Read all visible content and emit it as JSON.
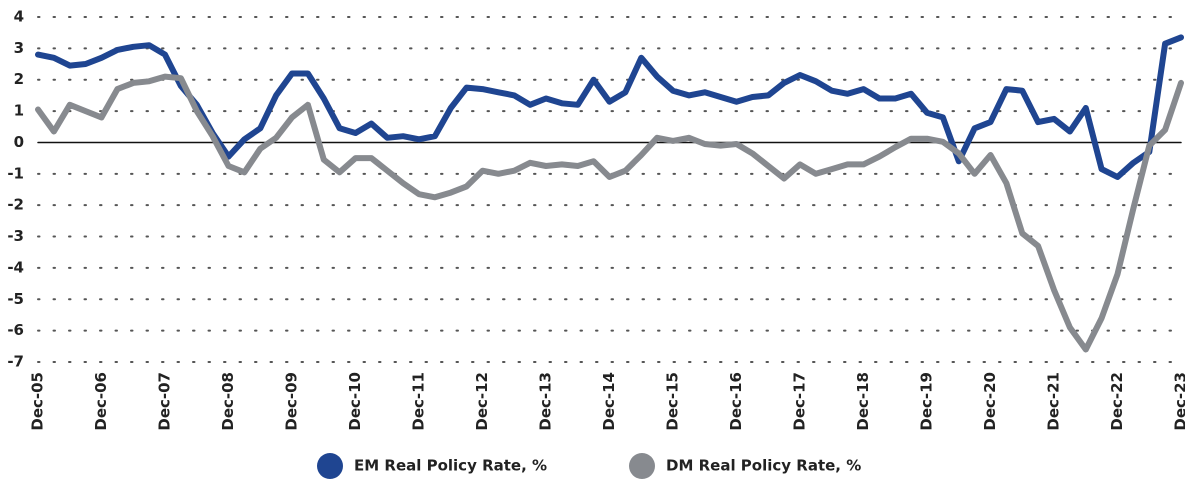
{
  "chart_data": {
    "type": "line",
    "categories": [
      "Dec-05",
      null,
      null,
      null,
      "Dec-06",
      null,
      null,
      null,
      "Dec-07",
      null,
      null,
      null,
      "Dec-08",
      null,
      null,
      null,
      "Dec-09",
      null,
      null,
      null,
      "Dec-10",
      null,
      null,
      null,
      "Dec-11",
      null,
      null,
      null,
      "Dec-12",
      null,
      null,
      null,
      "Dec-13",
      null,
      null,
      null,
      "Dec-14",
      null,
      null,
      null,
      "Dec-15",
      null,
      null,
      null,
      "Dec-16",
      null,
      null,
      null,
      "Dec-17",
      null,
      null,
      null,
      "Dec-18",
      null,
      null,
      null,
      "Dec-19",
      null,
      null,
      null,
      "Dec-20",
      null,
      null,
      null,
      "Dec-21",
      null,
      null,
      null,
      "Dec-22",
      null,
      null,
      null,
      "Dec-23"
    ],
    "series": [
      {
        "name": "EM Real Policy Rate, %",
        "color": "#1f4591",
        "values": [
          2.8,
          2.7,
          2.45,
          2.5,
          2.7,
          2.95,
          3.05,
          3.1,
          2.8,
          1.8,
          1.2,
          0.3,
          -0.45,
          0.1,
          0.45,
          1.5,
          2.2,
          2.2,
          1.4,
          0.45,
          0.3,
          0.6,
          0.15,
          0.2,
          0.1,
          0.2,
          1.1,
          1.75,
          1.7,
          1.6,
          1.5,
          1.2,
          1.4,
          1.25,
          1.2,
          2.0,
          1.3,
          1.6,
          2.7,
          2.1,
          1.65,
          1.5,
          1.6,
          1.45,
          1.3,
          1.45,
          1.5,
          1.9,
          2.15,
          1.95,
          1.65,
          1.55,
          1.7,
          1.4,
          1.4,
          1.55,
          0.95,
          0.8,
          -0.6,
          0.45,
          0.65,
          1.7,
          1.65,
          0.65,
          0.75,
          0.35,
          1.1,
          -0.85,
          -1.1,
          -0.65,
          -0.3,
          3.15,
          3.35
        ]
      },
      {
        "name": "DM Real Policy Rate, %",
        "color": "#878a8f",
        "values": [
          1.05,
          0.35,
          1.2,
          1.0,
          0.8,
          1.7,
          1.9,
          1.95,
          2.1,
          2.05,
          1.0,
          0.2,
          -0.75,
          -0.95,
          -0.2,
          0.15,
          0.8,
          1.2,
          -0.55,
          -0.95,
          -0.5,
          -0.5,
          -0.9,
          -1.3,
          -1.65,
          -1.75,
          -1.6,
          -1.4,
          -0.9,
          -1.0,
          -0.9,
          -0.65,
          -0.75,
          -0.7,
          -0.75,
          -0.6,
          -1.1,
          -0.9,
          -0.4,
          0.15,
          0.05,
          0.15,
          -0.05,
          -0.1,
          -0.05,
          -0.35,
          -0.75,
          -1.15,
          -0.7,
          -1.0,
          -0.85,
          -0.7,
          -0.7,
          -0.45,
          -0.15,
          0.12,
          0.12,
          0.02,
          -0.35,
          -1.0,
          -0.4,
          -1.3,
          -2.9,
          -3.3,
          -4.7,
          -5.9,
          -6.6,
          -5.6,
          -4.2,
          -2.1,
          -0.1,
          0.4,
          1.9
        ]
      }
    ],
    "ylim": [
      -7,
      4
    ],
    "yticks": [
      -7,
      -6,
      -5,
      -4,
      -3,
      -2,
      -1,
      0,
      1,
      2,
      3,
      4
    ],
    "grid": true
  }
}
